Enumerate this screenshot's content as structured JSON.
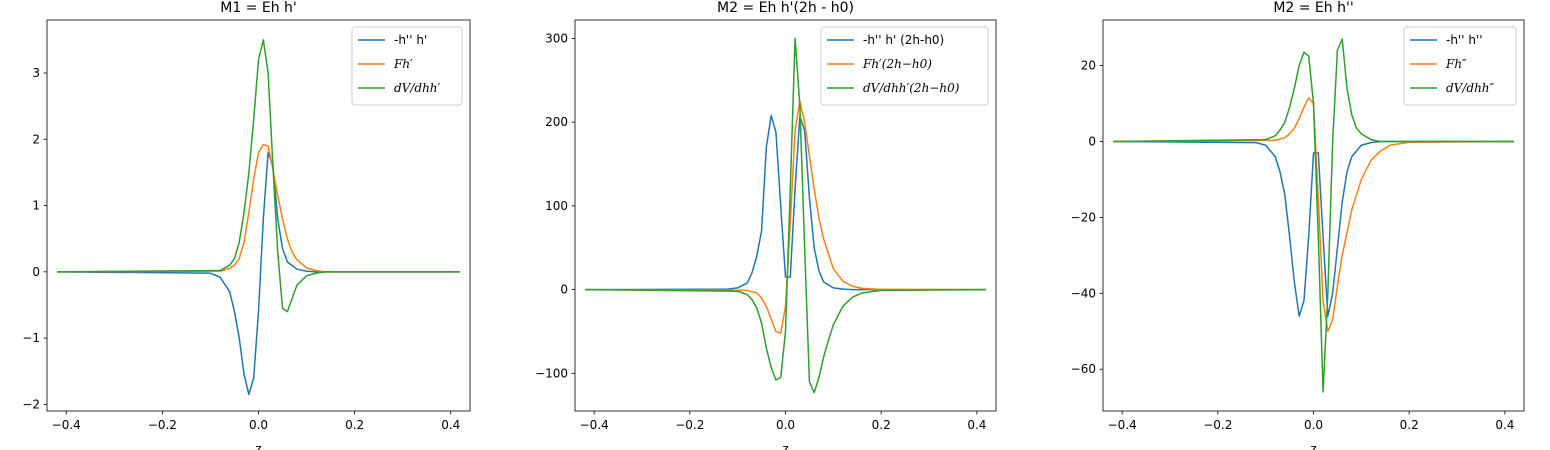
{
  "figure": {
    "colors": {
      "series_blue": "#1f77b4",
      "series_orange": "#ff7f0e",
      "series_green": "#2ca02c",
      "axis": "#000000",
      "background": "#ffffff",
      "legend_border": "#cccccc"
    }
  },
  "chart_data": [
    {
      "type": "line",
      "title": "M1 = Eh h'",
      "xlabel": "z",
      "ylabel": "",
      "xlim": [
        -0.44,
        0.44
      ],
      "ylim": [
        -2.1,
        3.8
      ],
      "xticks": [
        -0.4,
        -0.2,
        0.0,
        0.2,
        0.4
      ],
      "xtick_labels": [
        "−0.4",
        "−0.2",
        "0.0",
        "0.2",
        "0.4"
      ],
      "yticks": [
        -2,
        -1,
        0,
        1,
        2,
        3
      ],
      "ytick_labels": [
        "−2",
        "−1",
        "0",
        "1",
        "2",
        "3"
      ],
      "legend_position": "top-right",
      "grid": false,
      "series": [
        {
          "name": "-h'' h'",
          "color": "#1f77b4",
          "x": [
            -0.417,
            -0.1,
            -0.08,
            -0.06,
            -0.05,
            -0.04,
            -0.03,
            -0.02,
            -0.01,
            0.0,
            0.01,
            0.02,
            0.03,
            0.04,
            0.05,
            0.06,
            0.08,
            0.1,
            0.12,
            0.417
          ],
          "y": [
            0.0,
            -0.02,
            -0.08,
            -0.3,
            -0.6,
            -1.0,
            -1.55,
            -1.85,
            -1.6,
            -0.6,
            0.8,
            1.8,
            1.6,
            0.8,
            0.35,
            0.15,
            0.04,
            0.01,
            0.0,
            0.0
          ]
        },
        {
          "name": "Fh′",
          "color": "#ff7f0e",
          "x": [
            -0.417,
            -0.08,
            -0.06,
            -0.05,
            -0.04,
            -0.03,
            -0.02,
            -0.01,
            0.0,
            0.01,
            0.02,
            0.03,
            0.04,
            0.05,
            0.06,
            0.07,
            0.08,
            0.1,
            0.12,
            0.14,
            0.417
          ],
          "y": [
            0.0,
            0.01,
            0.05,
            0.1,
            0.2,
            0.45,
            0.9,
            1.4,
            1.8,
            1.92,
            1.9,
            1.55,
            1.15,
            0.8,
            0.5,
            0.3,
            0.18,
            0.06,
            0.02,
            0.0,
            0.0
          ]
        },
        {
          "name": "dV/dhh′",
          "color": "#2ca02c",
          "x": [
            -0.417,
            -0.08,
            -0.06,
            -0.05,
            -0.04,
            -0.03,
            -0.02,
            -0.01,
            0.0,
            0.01,
            0.02,
            0.03,
            0.04,
            0.05,
            0.06,
            0.07,
            0.08,
            0.1,
            0.12,
            0.14,
            0.417
          ],
          "y": [
            0.0,
            0.02,
            0.1,
            0.2,
            0.45,
            0.9,
            1.5,
            2.3,
            3.2,
            3.5,
            3.0,
            1.6,
            0.3,
            -0.55,
            -0.6,
            -0.4,
            -0.2,
            -0.06,
            -0.02,
            0.0,
            0.0
          ]
        }
      ]
    },
    {
      "type": "line",
      "title": "M2 = Eh h'(2h - h0)",
      "xlabel": "z",
      "ylabel": "",
      "xlim": [
        -0.44,
        0.44
      ],
      "ylim": [
        -145,
        322
      ],
      "xticks": [
        -0.4,
        -0.2,
        0.0,
        0.2,
        0.4
      ],
      "xtick_labels": [
        "−0.4",
        "−0.2",
        "0.0",
        "0.2",
        "0.4"
      ],
      "yticks": [
        -100,
        0,
        100,
        200,
        300
      ],
      "ytick_labels": [
        "−100",
        "0",
        "100",
        "200",
        "300"
      ],
      "legend_position": "top-right",
      "grid": false,
      "series": [
        {
          "name": "-h'' h' (2h-h0)",
          "color": "#1f77b4",
          "x": [
            -0.417,
            -0.12,
            -0.1,
            -0.08,
            -0.07,
            -0.06,
            -0.05,
            -0.04,
            -0.03,
            -0.02,
            -0.01,
            0.0,
            0.01,
            0.02,
            0.03,
            0.04,
            0.05,
            0.06,
            0.07,
            0.08,
            0.1,
            0.12,
            0.14,
            0.417
          ],
          "y": [
            0.0,
            0.5,
            2.0,
            8.0,
            20.0,
            40.0,
            70.0,
            170.0,
            208.0,
            188.0,
            100.0,
            15.0,
            15.0,
            120.0,
            207.0,
            190.0,
            110.0,
            50.0,
            22.0,
            9.0,
            2.0,
            0.5,
            0.0,
            0.0
          ]
        },
        {
          "name": "Fh′(2h−h0)",
          "color": "#ff7f0e",
          "x": [
            -0.417,
            -0.08,
            -0.06,
            -0.05,
            -0.04,
            -0.03,
            -0.02,
            -0.01,
            0.0,
            0.01,
            0.02,
            0.03,
            0.04,
            0.05,
            0.06,
            0.07,
            0.08,
            0.1,
            0.12,
            0.14,
            0.16,
            0.2,
            0.417
          ],
          "y": [
            0.0,
            -1.0,
            -4.0,
            -10.0,
            -20.0,
            -35.0,
            -50.0,
            -52.0,
            -20.0,
            80.0,
            190.0,
            225.0,
            200.0,
            160.0,
            120.0,
            85.0,
            60.0,
            25.0,
            10.0,
            4.0,
            1.5,
            0.3,
            0.0
          ]
        },
        {
          "name": "dV/dhh′(2h−h0)",
          "color": "#2ca02c",
          "x": [
            -0.417,
            -0.1,
            -0.08,
            -0.07,
            -0.06,
            -0.05,
            -0.04,
            -0.03,
            -0.02,
            -0.01,
            0.0,
            0.01,
            0.02,
            0.03,
            0.04,
            0.05,
            0.06,
            0.07,
            0.08,
            0.09,
            0.1,
            0.12,
            0.14,
            0.16,
            0.2,
            0.417
          ],
          "y": [
            0.0,
            -2.0,
            -6.0,
            -12.0,
            -22.0,
            -40.0,
            -70.0,
            -93.0,
            -108.0,
            -105.0,
            -50.0,
            120.0,
            300.0,
            220.0,
            50.0,
            -110.0,
            -123.0,
            -105.0,
            -80.0,
            -60.0,
            -42.0,
            -20.0,
            -9.0,
            -4.0,
            -1.0,
            0.0
          ]
        }
      ]
    },
    {
      "type": "line",
      "title": "M2 = Eh h''",
      "xlabel": "z",
      "ylabel": "",
      "xlim": [
        -0.44,
        0.44
      ],
      "ylim": [
        -71,
        32
      ],
      "xticks": [
        -0.4,
        -0.2,
        0.0,
        0.2,
        0.4
      ],
      "xtick_labels": [
        "−0.4",
        "−0.2",
        "0.0",
        "0.2",
        "0.4"
      ],
      "yticks": [
        -60,
        -40,
        -20,
        0,
        20
      ],
      "ytick_labels": [
        "−60",
        "−40",
        "−20",
        "0",
        "20"
      ],
      "legend_position": "top-right",
      "grid": false,
      "series": [
        {
          "name": "-h'' h''",
          "color": "#1f77b4",
          "x": [
            -0.417,
            -0.12,
            -0.1,
            -0.08,
            -0.07,
            -0.06,
            -0.05,
            -0.04,
            -0.03,
            -0.02,
            -0.01,
            0.0,
            0.01,
            0.02,
            0.03,
            0.04,
            0.05,
            0.06,
            0.07,
            0.08,
            0.1,
            0.12,
            0.14,
            0.417
          ],
          "y": [
            0.0,
            -0.3,
            -1.0,
            -4.0,
            -8.0,
            -14.0,
            -25.0,
            -37.0,
            -46.0,
            -42.0,
            -25.0,
            -3.0,
            -3.0,
            -25.0,
            -46.0,
            -40.0,
            -28.0,
            -16.0,
            -8.0,
            -4.0,
            -1.0,
            -0.3,
            0.0,
            0.0
          ]
        },
        {
          "name": "Fh″",
          "color": "#ff7f0e",
          "x": [
            -0.417,
            -0.08,
            -0.06,
            -0.05,
            -0.04,
            -0.03,
            -0.02,
            -0.01,
            0.0,
            0.01,
            0.02,
            0.03,
            0.04,
            0.05,
            0.06,
            0.07,
            0.08,
            0.1,
            0.12,
            0.14,
            0.16,
            0.2,
            0.417
          ],
          "y": [
            0.0,
            0.3,
            1.0,
            2.0,
            3.5,
            6.0,
            9.0,
            11.5,
            10.0,
            -15.0,
            -42.0,
            -50.0,
            -47.0,
            -38.0,
            -30.0,
            -24.0,
            -18.0,
            -10.0,
            -5.0,
            -2.5,
            -1.0,
            -0.2,
            0.0
          ]
        },
        {
          "name": "dV/dhh″",
          "color": "#2ca02c",
          "x": [
            -0.417,
            -0.1,
            -0.08,
            -0.07,
            -0.06,
            -0.05,
            -0.04,
            -0.03,
            -0.02,
            -0.01,
            0.0,
            0.01,
            0.02,
            0.03,
            0.04,
            0.05,
            0.06,
            0.07,
            0.08,
            0.09,
            0.1,
            0.12,
            0.14,
            0.417
          ],
          "y": [
            0.0,
            0.5,
            1.5,
            3.0,
            5.0,
            9.0,
            14.0,
            20.0,
            23.5,
            22.5,
            10.0,
            -25.0,
            -66.0,
            -40.0,
            0.0,
            24.0,
            27.0,
            14.0,
            7.0,
            3.5,
            2.0,
            0.5,
            0.0,
            0.0
          ]
        }
      ]
    }
  ]
}
